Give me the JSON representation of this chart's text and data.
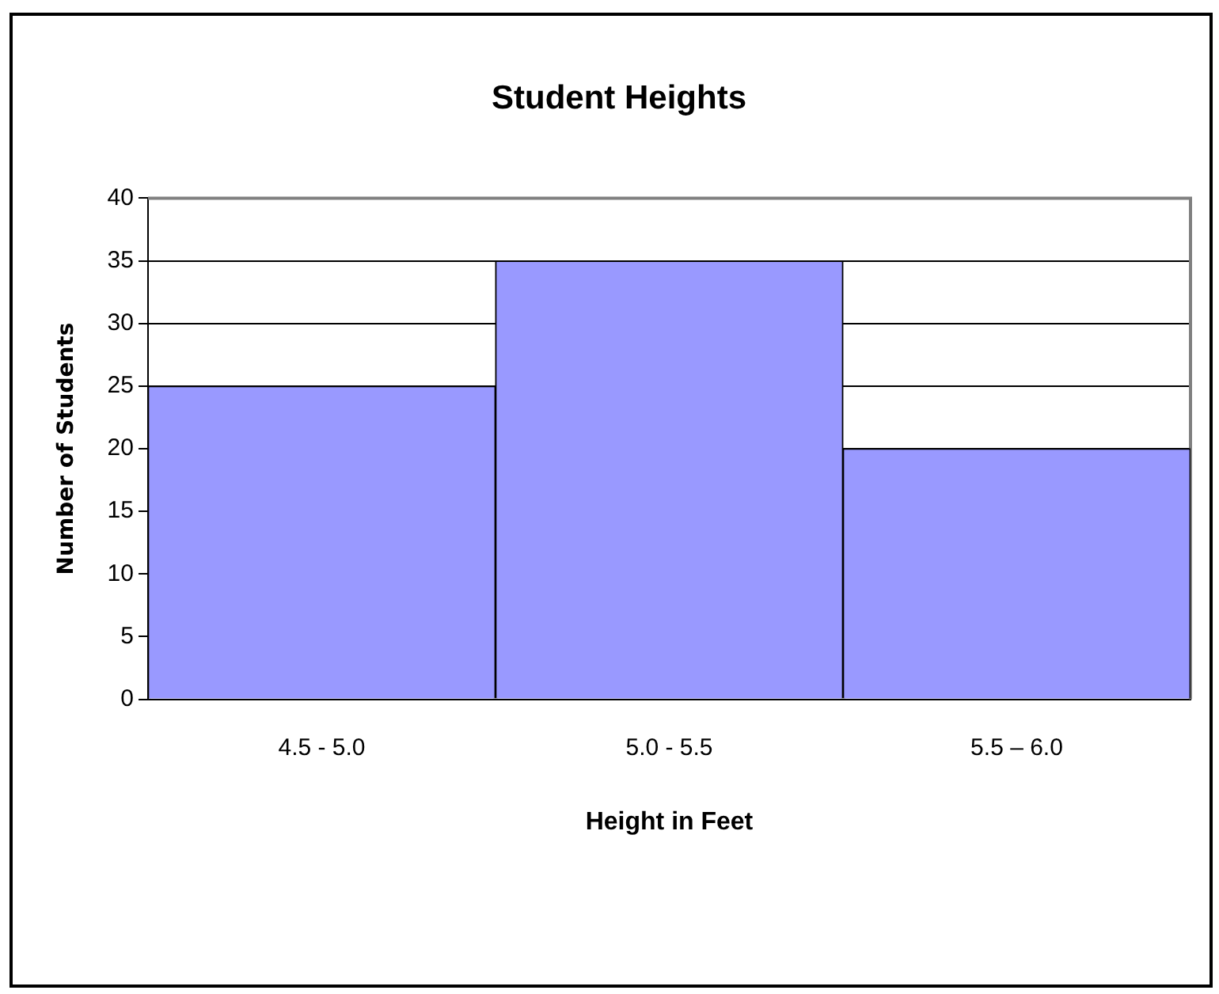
{
  "chart_data": {
    "type": "bar",
    "title": "Student Heights",
    "xlabel": "Height in Feet",
    "ylabel": "Number of Students",
    "categories": [
      "4.5 - 5.0",
      "5.0 - 5.5",
      "5.5 – 6.0"
    ],
    "values": [
      25,
      35,
      20
    ],
    "color": "#9999ff",
    "ylim": [
      0,
      40
    ],
    "yticks": [
      0,
      5,
      10,
      15,
      20,
      25,
      30,
      35,
      40
    ],
    "grid": "y",
    "legend": false
  }
}
